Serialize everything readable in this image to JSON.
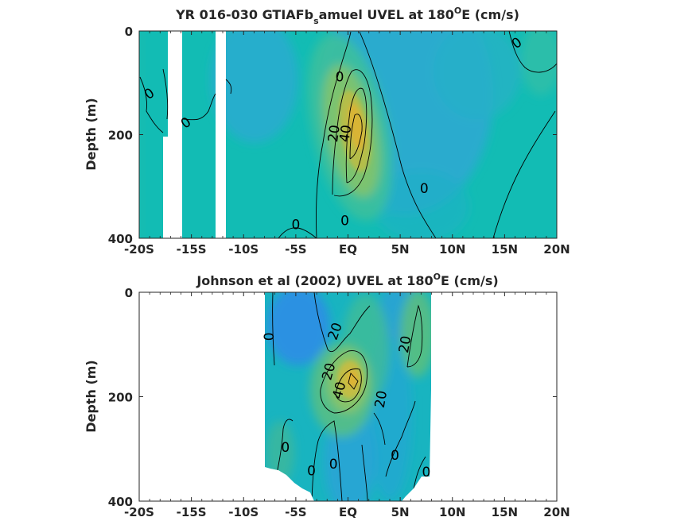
{
  "chart_data": [
    {
      "type": "heatmap",
      "subtype": "depth-latitude contour",
      "title": "YR 016-030 GTIAFb_samuel UVEL at 180ᴼE (cm/s)",
      "title_parts": {
        "pre": "YR 016-030 GTIAFb",
        "sub": "s",
        "mid": "amuel UVEL at 180",
        "sup": "O",
        "post": "E (cm/s)"
      },
      "xlabel": "",
      "ylabel": "Depth (m)",
      "x_ticks": [
        "-20S",
        "-15S",
        "-10S",
        "-5S",
        "EQ",
        "5N",
        "10N",
        "15N",
        "20N"
      ],
      "x_values": [
        -20,
        -15,
        -10,
        -5,
        0,
        5,
        10,
        15,
        20
      ],
      "y_ticks": [
        "0",
        "200",
        "400"
      ],
      "y_values": [
        0,
        200,
        400
      ],
      "xlim": [
        -20,
        20
      ],
      "ylim": [
        400,
        0
      ],
      "grid": false,
      "contour_levels": [
        -20,
        0,
        20,
        40
      ],
      "contour_labels": [
        {
          "text": "0",
          "x": -0.8,
          "y": 90,
          "rot": 0
        },
        {
          "text": "20",
          "x": -1.3,
          "y": 198,
          "rot": -82
        },
        {
          "text": "40",
          "x": -0.2,
          "y": 198,
          "rot": -82
        },
        {
          "text": "0",
          "x": 7.3,
          "y": 305,
          "rot": 0
        },
        {
          "text": "0",
          "x": -0.3,
          "y": 367,
          "rot": 0
        },
        {
          "text": "0",
          "x": -5,
          "y": 375,
          "rot": 0
        },
        {
          "text": "0",
          "x": -19,
          "y": 122,
          "rot": -35
        },
        {
          "text": "0",
          "x": -15.5,
          "y": 178,
          "rot": -35
        },
        {
          "text": "0",
          "x": 16.2,
          "y": 24,
          "rot": -35
        }
      ],
      "jet_core": {
        "lat": 0.8,
        "depth": 160,
        "max_cm_s": 45
      },
      "missing_bands_lat": [
        [
          -17.5,
          -15.8
        ],
        [
          -12.6,
          -11.9
        ]
      ]
    },
    {
      "type": "heatmap",
      "subtype": "depth-latitude contour",
      "title": "Johnson et al (2002) UVEL at 180ᴼE (cm/s)",
      "title_parts": {
        "pre": "Johnson et al (2002) UVEL at 180",
        "sup": "O",
        "post": "E (cm/s)"
      },
      "xlabel": "",
      "ylabel": "Depth (m)",
      "x_ticks": [
        "-20S",
        "-15S",
        "-10S",
        "-5S",
        "EQ",
        "5N",
        "10N",
        "15N",
        "20N"
      ],
      "x_values": [
        -20,
        -15,
        -10,
        -5,
        0,
        5,
        10,
        15,
        20
      ],
      "y_ticks": [
        "0",
        "200",
        "400"
      ],
      "y_values": [
        0,
        200,
        400
      ],
      "xlim": [
        -20,
        20
      ],
      "ylim": [
        400,
        0
      ],
      "grid": false,
      "data_lat_range": [
        -8,
        8
      ],
      "contour_levels": [
        -20,
        0,
        20,
        40
      ],
      "contour_labels": [
        {
          "text": "0",
          "x": -7.5,
          "y": 85,
          "rot": -90
        },
        {
          "text": "20",
          "x": -1.2,
          "y": 75,
          "rot": -70
        },
        {
          "text": "20",
          "x": 5.5,
          "y": 100,
          "rot": -80
        },
        {
          "text": "20",
          "x": -1.8,
          "y": 152,
          "rot": -75
        },
        {
          "text": "40",
          "x": -0.8,
          "y": 188,
          "rot": -75
        },
        {
          "text": "20",
          "x": 3.2,
          "y": 205,
          "rot": -80
        },
        {
          "text": "0",
          "x": -6,
          "y": 298,
          "rot": 0
        },
        {
          "text": "0",
          "x": -3.5,
          "y": 343,
          "rot": 0
        },
        {
          "text": "0",
          "x": -1.4,
          "y": 330,
          "rot": 0
        },
        {
          "text": "0",
          "x": 4.5,
          "y": 313,
          "rot": 0
        },
        {
          "text": "0",
          "x": 7.5,
          "y": 345,
          "rot": 0
        }
      ],
      "jet_core": {
        "lat": 0.5,
        "depth": 165,
        "max_cm_s": 45
      }
    }
  ]
}
